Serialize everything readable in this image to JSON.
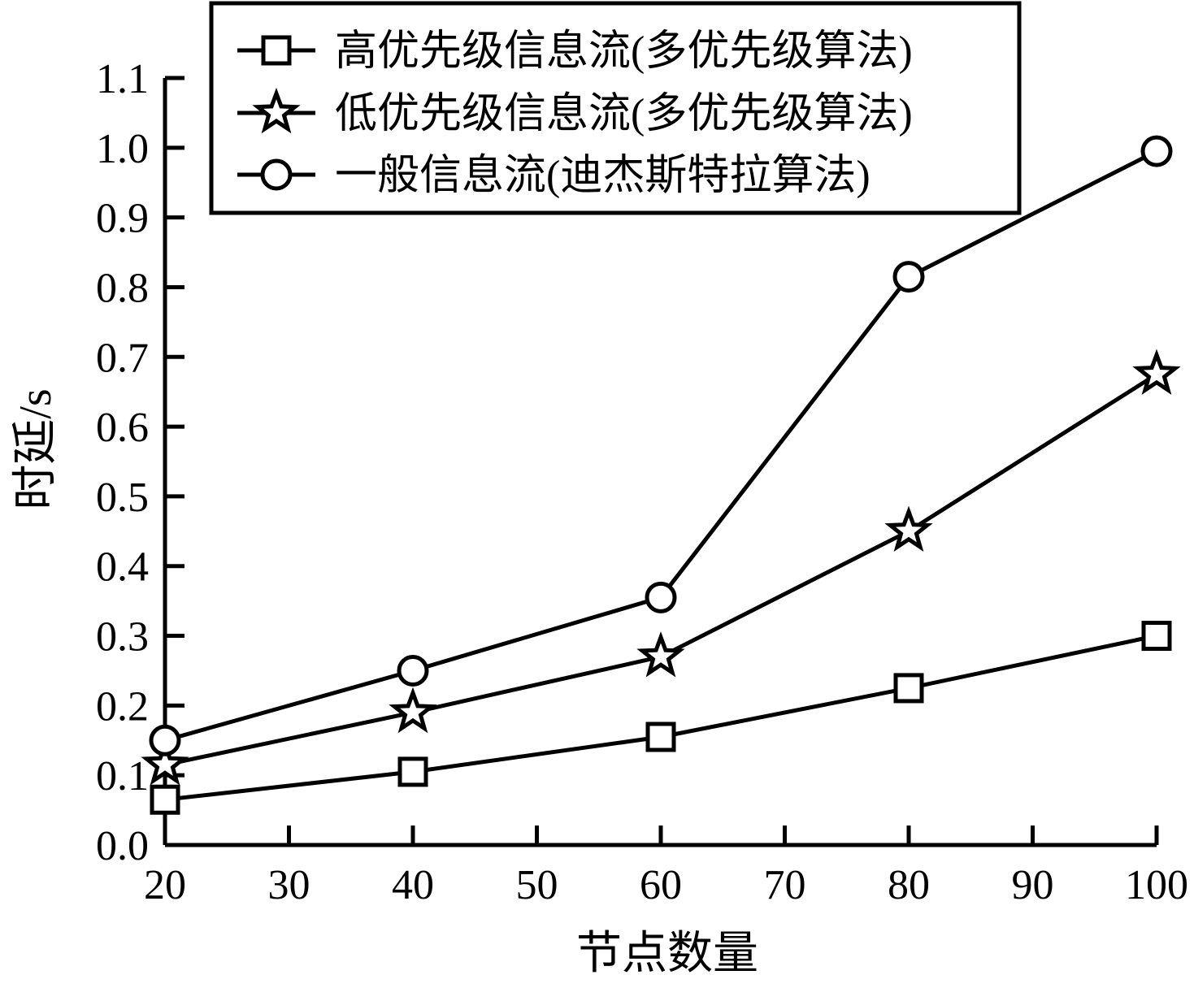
{
  "chart_data": {
    "type": "line",
    "xlabel": "节点数量",
    "ylabel": "时延/s",
    "xlim": [
      20,
      100
    ],
    "ylim": [
      0.0,
      1.1
    ],
    "x_ticks": [
      "20",
      "30",
      "40",
      "50",
      "60",
      "70",
      "80",
      "90",
      "100"
    ],
    "y_ticks": [
      "0.0",
      "0.1",
      "0.2",
      "0.3",
      "0.4",
      "0.5",
      "0.6",
      "0.7",
      "0.8",
      "0.9",
      "1.0",
      "1.1"
    ],
    "x": [
      20,
      40,
      60,
      80,
      100
    ],
    "series": [
      {
        "name": "高优先级信息流(多优先级算法)",
        "marker": "square",
        "values": [
          0.065,
          0.105,
          0.155,
          0.225,
          0.3
        ]
      },
      {
        "name": "低优先级信息流(多优先级算法)",
        "marker": "star",
        "values": [
          0.115,
          0.19,
          0.27,
          0.45,
          0.675
        ]
      },
      {
        "name": "一般信息流(迪杰斯特拉算法)",
        "marker": "circle",
        "values": [
          0.15,
          0.25,
          0.355,
          0.815,
          0.995
        ]
      }
    ],
    "legend_position": "top",
    "grid": false
  }
}
